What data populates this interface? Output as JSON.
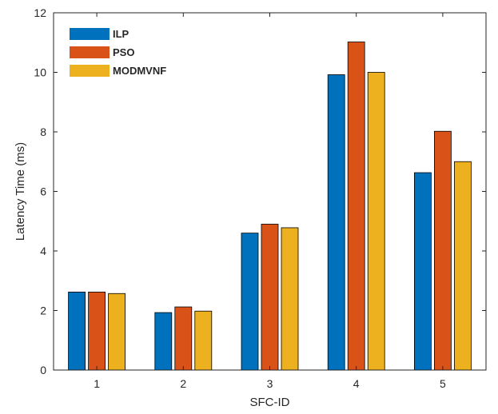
{
  "chart_data": {
    "type": "bar",
    "title": "",
    "xlabel": "SFC-ID",
    "ylabel": "Latency Time (ms)",
    "categories": [
      "1",
      "2",
      "3",
      "4",
      "5"
    ],
    "ylim": [
      0,
      12
    ],
    "yticks": [
      0,
      2,
      4,
      6,
      8,
      10,
      12
    ],
    "grid": false,
    "legend_position": "top-left",
    "series": [
      {
        "name": "ILP",
        "color": "#0072BD",
        "values": [
          2.62,
          1.93,
          4.6,
          9.92,
          6.63
        ]
      },
      {
        "name": "PSO",
        "color": "#D95319",
        "values": [
          2.62,
          2.12,
          4.9,
          11.02,
          8.02
        ]
      },
      {
        "name": "MODMVNF",
        "color": "#EDB120",
        "values": [
          2.57,
          1.98,
          4.78,
          10.0,
          7.0
        ]
      }
    ]
  }
}
